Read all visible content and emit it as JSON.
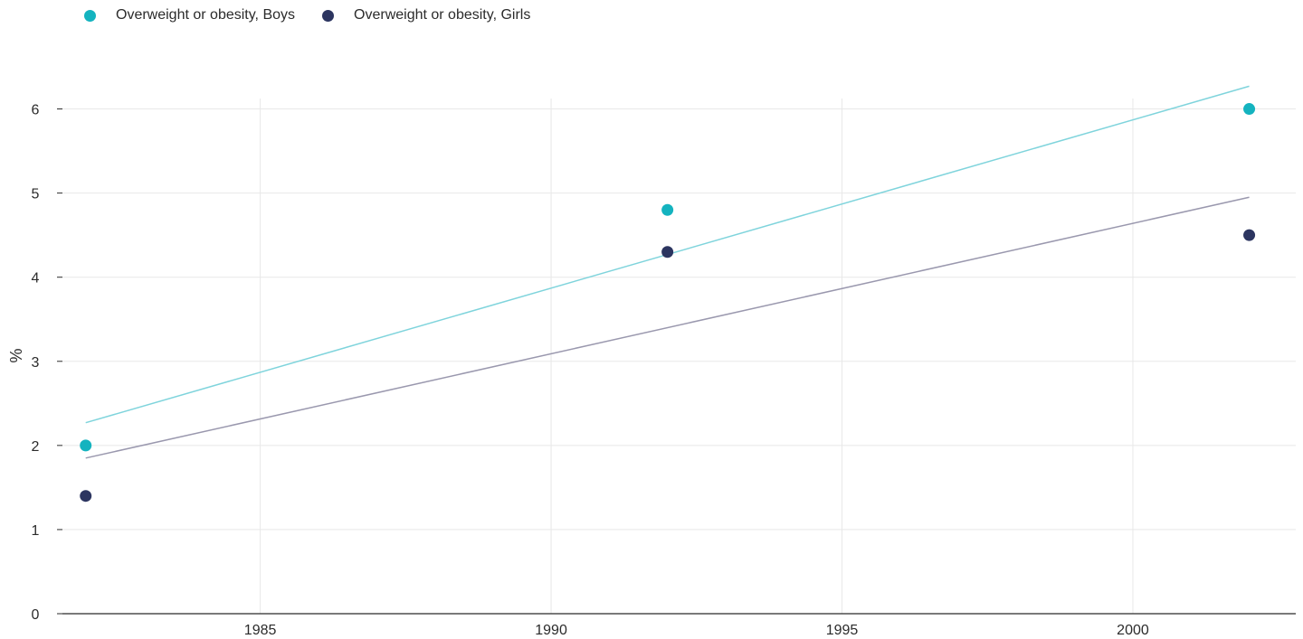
{
  "chart_data": {
    "type": "scatter",
    "title": "",
    "xlabel": "",
    "ylabel": "%",
    "xlim": [
      1981.6,
      2002.8
    ],
    "ylim": [
      0,
      6.5
    ],
    "xticks": [
      1985,
      1990,
      1995,
      2000
    ],
    "yticks": [
      0,
      1,
      2,
      3,
      4,
      5,
      6
    ],
    "grid": true,
    "legend_position": "top-left",
    "series": [
      {
        "name": "Overweight or obesity, Boys",
        "color": "#14b3bf",
        "trend_color": "#7fd4dc",
        "points": [
          {
            "x": 1982,
            "y": 2.0
          },
          {
            "x": 1992,
            "y": 4.8
          },
          {
            "x": 2002,
            "y": 6.0
          }
        ],
        "trendline": [
          {
            "x": 1982,
            "y": 2.27
          },
          {
            "x": 2002,
            "y": 6.27
          }
        ]
      },
      {
        "name": "Overweight or obesity, Girls",
        "color": "#2c3560",
        "trend_color": "#9a98ae",
        "points": [
          {
            "x": 1982,
            "y": 1.4
          },
          {
            "x": 1992,
            "y": 4.3
          },
          {
            "x": 2002,
            "y": 4.5
          }
        ],
        "trendline": [
          {
            "x": 1982,
            "y": 1.85
          },
          {
            "x": 2002,
            "y": 4.95
          }
        ]
      }
    ]
  }
}
